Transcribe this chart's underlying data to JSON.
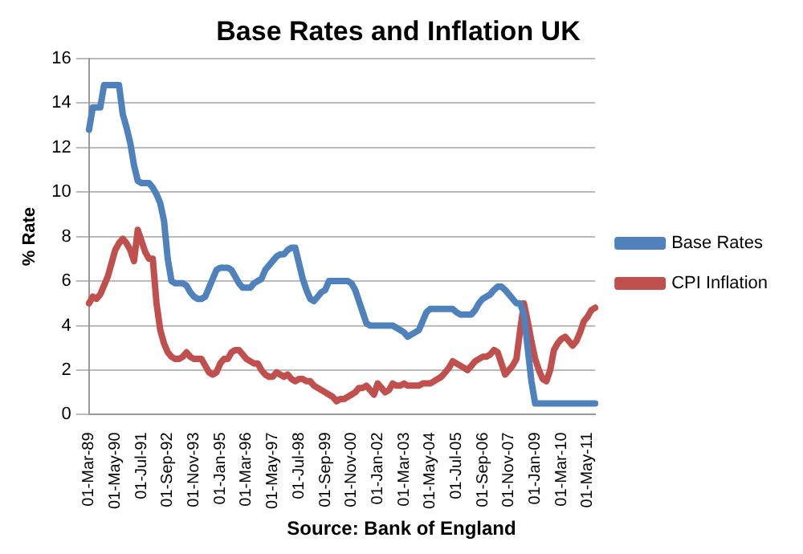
{
  "chart_data": {
    "type": "line",
    "title": "Base Rates and Inflation UK",
    "ylabel": "% Rate",
    "categories": [
      "01-Mar-89",
      null,
      null,
      null,
      null,
      null,
      null,
      "01-May-90",
      null,
      null,
      null,
      null,
      null,
      null,
      "01-Jul-91",
      null,
      null,
      null,
      null,
      null,
      null,
      "01-Sep-92",
      null,
      null,
      null,
      null,
      null,
      null,
      "01-Nov-93",
      null,
      null,
      null,
      null,
      null,
      null,
      "01-Jan-95",
      null,
      null,
      null,
      null,
      null,
      null,
      "01-Mar-96",
      null,
      null,
      null,
      null,
      null,
      null,
      "01-May-97",
      null,
      null,
      null,
      null,
      null,
      null,
      "01-Jul-98",
      null,
      null,
      null,
      null,
      null,
      null,
      "01-Sep-99",
      null,
      null,
      null,
      null,
      null,
      null,
      "01-Nov-00",
      null,
      null,
      null,
      null,
      null,
      null,
      "01-Jan-02",
      null,
      null,
      null,
      null,
      null,
      null,
      "01-Mar-03",
      null,
      null,
      null,
      null,
      null,
      null,
      "01-May-04",
      null,
      null,
      null,
      null,
      null,
      null,
      "01-Jul-05",
      null,
      null,
      null,
      null,
      null,
      null,
      "01-Sep-06",
      null,
      null,
      null,
      null,
      null,
      null,
      "01-Nov-07",
      null,
      null,
      null,
      null,
      null,
      null,
      "01-Jan-09",
      null,
      null,
      null,
      null,
      null,
      null,
      "01-Mar-10",
      null,
      null,
      null,
      null,
      null,
      null,
      "01-May-11",
      null,
      null
    ],
    "series": [
      {
        "name": "Base Rates",
        "color": "#4f81bd",
        "values": [
          12.8,
          13.8,
          13.8,
          13.8,
          14.8,
          14.8,
          14.8,
          14.8,
          14.8,
          13.5,
          12.9,
          12.2,
          11.2,
          10.5,
          10.4,
          10.4,
          10.4,
          10.2,
          9.9,
          9.5,
          8.7,
          7,
          6,
          5.9,
          5.9,
          5.9,
          5.8,
          5.5,
          5.3,
          5.2,
          5.2,
          5.3,
          5.7,
          6.1,
          6.5,
          6.6,
          6.6,
          6.6,
          6.5,
          6.2,
          5.9,
          5.7,
          5.7,
          5.7,
          5.9,
          6,
          6.1,
          6.5,
          6.7,
          6.9,
          7.1,
          7.2,
          7.2,
          7.4,
          7.5,
          7.5,
          6.8,
          6.1,
          5.6,
          5.2,
          5.1,
          5.3,
          5.5,
          5.6,
          6,
          6,
          6,
          6,
          6,
          6,
          5.9,
          5.6,
          5.1,
          4.6,
          4.1,
          4,
          4,
          4,
          4,
          4,
          4,
          4,
          3.9,
          3.8,
          3.7,
          3.5,
          3.6,
          3.7,
          3.8,
          4.2,
          4.6,
          4.75,
          4.75,
          4.75,
          4.75,
          4.75,
          4.75,
          4.75,
          4.6,
          4.5,
          4.5,
          4.5,
          4.5,
          4.7,
          5,
          5.2,
          5.3,
          5.4,
          5.6,
          5.75,
          5.75,
          5.6,
          5.4,
          5.2,
          5,
          5,
          4.5,
          3,
          1.5,
          0.5,
          0.5,
          0.5,
          0.5,
          0.5,
          0.5,
          0.5,
          0.5,
          0.5,
          0.5,
          0.5,
          0.5,
          0.5,
          0.5,
          0.5,
          0.5,
          0.5
        ]
      },
      {
        "name": "CPI Inflation",
        "color": "#c0504d",
        "values": [
          5.0,
          5.3,
          5.2,
          5.4,
          5.8,
          6.2,
          6.8,
          7.4,
          7.7,
          7.9,
          7.7,
          7.4,
          6.9,
          8.3,
          7.8,
          7.3,
          7.0,
          7.0,
          5.0,
          3.8,
          3.2,
          2.8,
          2.6,
          2.5,
          2.5,
          2.6,
          2.8,
          2.6,
          2.5,
          2.5,
          2.5,
          2.2,
          1.9,
          1.8,
          1.9,
          2.3,
          2.5,
          2.5,
          2.8,
          2.9,
          2.9,
          2.7,
          2.5,
          2.4,
          2.3,
          2.3,
          2.0,
          1.8,
          1.7,
          1.7,
          1.9,
          1.8,
          1.7,
          1.8,
          1.6,
          1.5,
          1.6,
          1.6,
          1.5,
          1.5,
          1.3,
          1.2,
          1.1,
          1.0,
          0.9,
          0.8,
          0.6,
          0.7,
          0.7,
          0.8,
          0.9,
          1.0,
          1.2,
          1.2,
          1.3,
          1.1,
          0.9,
          1.4,
          1.2,
          1.0,
          1.1,
          1.4,
          1.3,
          1.3,
          1.4,
          1.3,
          1.3,
          1.3,
          1.3,
          1.4,
          1.4,
          1.4,
          1.5,
          1.6,
          1.7,
          1.9,
          2.1,
          2.4,
          2.3,
          2.2,
          2.1,
          2.0,
          2.2,
          2.4,
          2.5,
          2.6,
          2.6,
          2.7,
          2.9,
          2.8,
          2.3,
          1.8,
          2.0,
          2.2,
          2.5,
          3.8,
          5.0,
          4.2,
          3.3,
          2.5,
          2.0,
          1.6,
          1.5,
          2.0,
          2.9,
          3.2,
          3.4,
          3.5,
          3.3,
          3.1,
          3.3,
          3.7,
          4.2,
          4.4,
          4.7,
          4.8
        ]
      }
    ],
    "ylim": [
      0,
      16
    ],
    "yticks": [
      0,
      2,
      4,
      6,
      8,
      10,
      12,
      14,
      16
    ],
    "grid": "y",
    "legend": "right",
    "marker": "none",
    "line_style": "solid",
    "annotations": [
      "Source: Bank of England"
    ]
  }
}
